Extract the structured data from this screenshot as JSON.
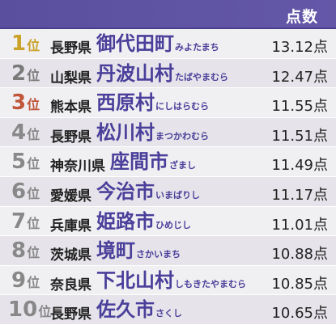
{
  "header": {
    "score_label": "点数"
  },
  "rows": [
    {
      "rank": "1",
      "suffix": "位",
      "pref": "長野県",
      "city": "御代田町",
      "reading": "みよたまち",
      "score": "13.12点",
      "medal": "gold"
    },
    {
      "rank": "2",
      "suffix": "位",
      "pref": "山梨県",
      "city": "丹波山村",
      "reading": "たばやまむら",
      "score": "12.47点",
      "medal": "silver"
    },
    {
      "rank": "3",
      "suffix": "位",
      "pref": "熊本県",
      "city": "西原村",
      "reading": "にしはらむら",
      "score": "11.55点",
      "medal": "bronze"
    },
    {
      "rank": "4",
      "suffix": "位",
      "pref": "長野県",
      "city": "松川村",
      "reading": "まつかわむら",
      "score": "11.51点",
      "medal": ""
    },
    {
      "rank": "5",
      "suffix": "位",
      "pref": "神奈川県",
      "city": "座間市",
      "reading": "ざまし",
      "score": "11.49点",
      "medal": ""
    },
    {
      "rank": "6",
      "suffix": "位",
      "pref": "愛媛県",
      "city": "今治市",
      "reading": "いまばりし",
      "score": "11.17点",
      "medal": ""
    },
    {
      "rank": "7",
      "suffix": "位",
      "pref": "兵庫県",
      "city": "姫路市",
      "reading": "ひめじし",
      "score": "11.01点",
      "medal": ""
    },
    {
      "rank": "8",
      "suffix": "位",
      "pref": "茨城県",
      "city": "境町",
      "reading": "さかいまち",
      "score": "10.88点",
      "medal": ""
    },
    {
      "rank": "9",
      "suffix": "位",
      "pref": "奈良県",
      "city": "下北山村",
      "reading": "しもきたやまむら",
      "score": "10.85点",
      "medal": ""
    },
    {
      "rank": "10",
      "suffix": "位",
      "pref": "長野県",
      "city": "佐久市",
      "reading": "さくし",
      "score": "10.65点",
      "medal": ""
    }
  ],
  "colors": {
    "header_bg": "#5a4f9e",
    "city_text": "#4a3f9a",
    "gold": "#c9a227",
    "bronze": "#c0553a",
    "rank_default": "#888888"
  }
}
